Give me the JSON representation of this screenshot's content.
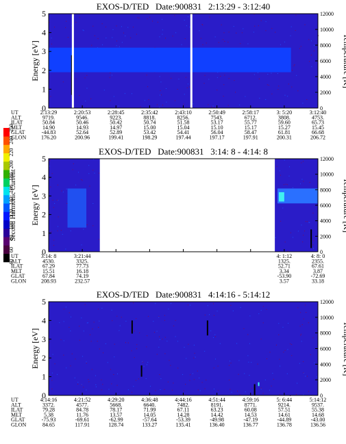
{
  "colorbar": {
    "label": "Second Harmonic Current",
    "ticks": [
      "40",
      "60",
      "80",
      "100",
      "120",
      "140",
      "160",
      "180",
      "200",
      "220",
      "240",
      "250"
    ],
    "colors": [
      "#000000",
      "#4a0040",
      "#5a0070",
      "#2a009a",
      "#0000c8",
      "#0018ff",
      "#0058ff",
      "#00a0ff",
      "#00e4ee",
      "#00d060",
      "#30b000",
      "#a8c800",
      "#f0f000",
      "#ffa800",
      "#ff5000",
      "#ff0000"
    ]
  },
  "chart_data": [
    {
      "type": "heatmap",
      "title": "EXOS-D/TED   Date:900831   2:13:29 - 3:12:40",
      "ylabel": "Energy [eV]",
      "ylabel_right": "Temperature [K]",
      "ylim": [
        0,
        5
      ],
      "yticks": [
        "0",
        "1",
        "2",
        "3",
        "4",
        "5"
      ],
      "ylim_right": [
        0,
        12000
      ],
      "yticks_right": [
        "0",
        "2000",
        "4000",
        "6000",
        "8000",
        "10000",
        "12000"
      ],
      "gaps": [
        0.09,
        0.53
      ],
      "bands": [
        {
          "e0": 1.9,
          "e1": 3.2,
          "x0": 0.0,
          "x1": 0.9,
          "color": "#1040ff"
        }
      ],
      "streaks": [
        {
          "x": 0.086,
          "e0": 0.7,
          "e1": 2.8,
          "color": "#000000"
        }
      ],
      "row_labels": [
        "UT",
        "ALT",
        "ILAT",
        "MLT",
        "GLAT",
        "GLON"
      ],
      "columns": [
        [
          "2:13:29",
          "9719.",
          "50.84",
          "14.90",
          "-44.83",
          "176.20"
        ],
        [
          "2:20:53",
          "9546.",
          "50.46",
          "14.93",
          "52.64",
          "200.96"
        ],
        [
          "2:28:45",
          "9223.",
          "50.42",
          "14.97",
          "52.89",
          "199.41"
        ],
        [
          "2:35:42",
          "8818.",
          "50.74",
          "15.00",
          "53.42",
          "198.29"
        ],
        [
          "2:43:10",
          "8256.",
          "51.58",
          "15.04",
          "54.41",
          "197.44"
        ],
        [
          "2:50:49",
          "7543.",
          "53.17",
          "15.10",
          "56.04",
          "197.17"
        ],
        [
          "2:58:17",
          "6712.",
          "55.77",
          "15.17",
          "58.47",
          "197.91"
        ],
        [
          "3: 5:20",
          "3808.",
          "59.60",
          "15.27",
          "61.81",
          "200.31"
        ],
        [
          "3:12:40",
          "4753.",
          "65.73",
          "15.45",
          "66.68",
          "206.72"
        ]
      ]
    },
    {
      "type": "heatmap",
      "title": "EXOS-D/TED   Date:900831   3:14: 8 - 4:14: 8",
      "ylabel": "Energy [eV]",
      "ylabel_right": "Temperature [K]",
      "ylim": [
        0,
        5
      ],
      "yticks": [
        "0",
        "1",
        "2",
        "3",
        "4",
        "5"
      ],
      "ylim_right": [
        0,
        12000
      ],
      "yticks_right": [
        "0",
        "2000",
        "4000",
        "6000",
        "8000",
        "10000",
        "12000"
      ],
      "data_spans": [
        [
          0.0,
          0.19
        ],
        [
          0.84,
          1.0
        ]
      ],
      "bands": [
        {
          "e0": 1.3,
          "e1": 3.4,
          "x0": 0.07,
          "x1": 0.14,
          "color": "#2050f0"
        },
        {
          "e0": 2.6,
          "e1": 3.4,
          "x0": 0.85,
          "x1": 1.0,
          "color": "#2a70ff"
        },
        {
          "e0": 2.7,
          "e1": 3.2,
          "x0": 0.855,
          "x1": 0.875,
          "color": "#40f0f0"
        }
      ],
      "streaks": [
        {
          "x": 0.975,
          "e0": 0.2,
          "e1": 1.2,
          "color": "#000000"
        }
      ],
      "row_labels": [
        "UT",
        "ALT",
        "ILAT",
        "MLT",
        "GLAT",
        "GLON"
      ],
      "columns": [
        [
          "3:14: 8",
          "4530.",
          "67.29",
          "15.51",
          "67.84",
          "208.93"
        ],
        [
          "3:21:44",
          "3325.",
          "77.73",
          "16.18",
          "74.19",
          "232.57"
        ],
        [
          "",
          "",
          "",
          "",
          "",
          ""
        ],
        [
          "",
          "",
          "",
          "",
          "",
          ""
        ],
        [
          "",
          "",
          "",
          "",
          "",
          ""
        ],
        [
          "",
          "",
          "",
          "",
          "",
          ""
        ],
        [
          "",
          "",
          "",
          "",
          "",
          ""
        ],
        [
          "4: 1:12",
          "1325.",
          "52.71",
          "3.34",
          "-53.90",
          "3.57"
        ],
        [
          "4: 8: 0",
          "2355.",
          "67.61",
          "3.87",
          "-72.69",
          "33.18"
        ]
      ]
    },
    {
      "type": "heatmap",
      "title": "EXOS-D/TED   Date:900831   4:14:16 - 5:14:12",
      "ylabel": "Energy [eV]",
      "ylabel_right": "Temperature [K]",
      "ylim": [
        0,
        5
      ],
      "yticks": [
        "0",
        "1",
        "2",
        "3",
        "4",
        "5"
      ],
      "ylim_right": [
        0,
        12000
      ],
      "yticks_right": [
        "0",
        "2000",
        "4000",
        "6000",
        "8000",
        "10000",
        "12000"
      ],
      "bands": [],
      "streaks": [
        {
          "x": 0.31,
          "e0": 3.3,
          "e1": 4.0,
          "color": "#000000"
        },
        {
          "x": 0.345,
          "e0": 1.0,
          "e1": 1.6,
          "color": "#000000"
        },
        {
          "x": 0.59,
          "e0": 3.2,
          "e1": 4.0,
          "color": "#000000"
        },
        {
          "x": 0.765,
          "e0": 0.0,
          "e1": 0.6,
          "color": "#000000"
        },
        {
          "x": 0.78,
          "e0": 0.5,
          "e1": 0.7,
          "color": "#40f0f0"
        }
      ],
      "row_labels": [
        "UT",
        "ALT",
        "ILAT",
        "MLT",
        "GLAT",
        "GLON"
      ],
      "columns": [
        [
          "4:14:16",
          "3372.",
          "79.28",
          "5.38",
          "-75.93",
          "84.65"
        ],
        [
          "4:21:52",
          "4577.",
          "84.78",
          "11.76",
          "-69.61",
          "117.91"
        ],
        [
          "4:29:20",
          "5668.",
          "78.17",
          "13.57",
          "-62.99",
          "128.74"
        ],
        [
          "4:36:48",
          "6640.",
          "71.99",
          "14.05",
          "-57.64",
          "133.27"
        ],
        [
          "4:44:16",
          "7482.",
          "67.11",
          "14.28",
          "-53.39",
          "135.41"
        ],
        [
          "4:51:44",
          "8191.",
          "63.23",
          "14.42",
          "-49.98",
          "136.40"
        ],
        [
          "4:59:16",
          "8771.",
          "60.08",
          "14.53",
          "-47.19",
          "136.77"
        ],
        [
          "5: 6:44",
          "9214.",
          "57.51",
          "14.61",
          "-44.89",
          "136.78"
        ],
        [
          "5:14:12",
          "9537.",
          "55.38",
          "14.68",
          "-43.00",
          "136.56"
        ]
      ]
    }
  ]
}
